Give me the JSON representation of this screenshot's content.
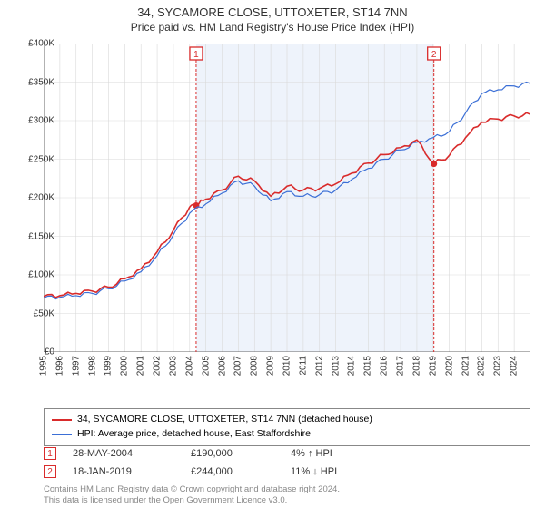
{
  "title": {
    "line1": "34, SYCAMORE CLOSE, UTTOXETER, ST14 7NN",
    "line2": "Price paid vs. HM Land Registry's House Price Index (HPI)",
    "fontsize1": 13,
    "fontsize2": 12,
    "color": "#333333"
  },
  "chart": {
    "type": "line",
    "background_color": "#ffffff",
    "grid_color": "#d9d9d9",
    "axis_color": "#666666",
    "x_years": [
      1995,
      1996,
      1997,
      1998,
      1999,
      2000,
      2001,
      2002,
      2003,
      2004,
      2005,
      2006,
      2007,
      2008,
      2009,
      2010,
      2011,
      2012,
      2013,
      2014,
      2015,
      2016,
      2017,
      2018,
      2019,
      2020,
      2021,
      2022,
      2023,
      2024
    ],
    "xmin": 1995,
    "xmax": 2025,
    "ylim": [
      0,
      400000
    ],
    "ytick_step": 50000,
    "ytick_labels": [
      "£0",
      "£50K",
      "£100K",
      "£150K",
      "£200K",
      "£250K",
      "£300K",
      "£350K",
      "£400K"
    ],
    "shaded_region": {
      "x_start": 2004.4,
      "x_end": 2019.05,
      "fill": "#eef3fb"
    },
    "series": [
      {
        "name": "price_paid",
        "label": "34, SYCAMORE CLOSE, UTTOXETER, ST14 7NN (detached house)",
        "color": "#d92b2b",
        "line_width": 1.6,
        "data": [
          [
            1995,
            72000
          ],
          [
            1996,
            73000
          ],
          [
            1997,
            76000
          ],
          [
            1998,
            79000
          ],
          [
            1999,
            84000
          ],
          [
            2000,
            95000
          ],
          [
            2001,
            108000
          ],
          [
            2002,
            130000
          ],
          [
            2003,
            158000
          ],
          [
            2004,
            188000
          ],
          [
            2004.4,
            190000
          ],
          [
            2005,
            198000
          ],
          [
            2006,
            210000
          ],
          [
            2007,
            228000
          ],
          [
            2008,
            222000
          ],
          [
            2009,
            202000
          ],
          [
            2010,
            215000
          ],
          [
            2011,
            210000
          ],
          [
            2012,
            212000
          ],
          [
            2013,
            218000
          ],
          [
            2014,
            232000
          ],
          [
            2015,
            245000
          ],
          [
            2016,
            256000
          ],
          [
            2017,
            265000
          ],
          [
            2018,
            275000
          ],
          [
            2019.05,
            244000
          ],
          [
            2020,
            255000
          ],
          [
            2021,
            278000
          ],
          [
            2022,
            298000
          ],
          [
            2023,
            302000
          ],
          [
            2024,
            306000
          ],
          [
            2025,
            308000
          ]
        ]
      },
      {
        "name": "hpi",
        "label": "HPI: Average price, detached house, East Staffordshire",
        "color": "#3b6fd6",
        "line_width": 1.2,
        "data": [
          [
            1995,
            70000
          ],
          [
            1996,
            71000
          ],
          [
            1997,
            73000
          ],
          [
            1998,
            76000
          ],
          [
            1999,
            82000
          ],
          [
            2000,
            92000
          ],
          [
            2001,
            104000
          ],
          [
            2002,
            125000
          ],
          [
            2003,
            152000
          ],
          [
            2004,
            180000
          ],
          [
            2005,
            192000
          ],
          [
            2006,
            206000
          ],
          [
            2007,
            222000
          ],
          [
            2008,
            215000
          ],
          [
            2009,
            196000
          ],
          [
            2010,
            208000
          ],
          [
            2011,
            202000
          ],
          [
            2012,
            204000
          ],
          [
            2013,
            210000
          ],
          [
            2014,
            224000
          ],
          [
            2015,
            238000
          ],
          [
            2016,
            250000
          ],
          [
            2017,
            262000
          ],
          [
            2018,
            272000
          ],
          [
            2019,
            278000
          ],
          [
            2020,
            286000
          ],
          [
            2021,
            310000
          ],
          [
            2022,
            335000
          ],
          [
            2023,
            340000
          ],
          [
            2024,
            345000
          ],
          [
            2025,
            348000
          ]
        ]
      }
    ],
    "sale_markers": [
      {
        "n": "1",
        "x": 2004.4,
        "y": 190000,
        "color": "#d92b2b",
        "line_dash": "3,2"
      },
      {
        "n": "2",
        "x": 2019.05,
        "y": 244000,
        "color": "#d92b2b",
        "line_dash": "3,2"
      }
    ],
    "label_fontsize": 10
  },
  "legend": {
    "border_color": "#888888",
    "fontsize": 10.5,
    "items": [
      {
        "color": "#d92b2b",
        "label": "34, SYCAMORE CLOSE, UTTOXETER, ST14 7NN (detached house)"
      },
      {
        "color": "#3b6fd6",
        "label": "HPI: Average price, detached house, East Staffordshire"
      }
    ]
  },
  "sales": [
    {
      "n": "1",
      "color": "#d92b2b",
      "date": "28-MAY-2004",
      "price": "£190,000",
      "delta": "4% ↑ HPI"
    },
    {
      "n": "2",
      "color": "#d92b2b",
      "date": "18-JAN-2019",
      "price": "£244,000",
      "delta": "11% ↓ HPI"
    }
  ],
  "footer": {
    "line1": "Contains HM Land Registry data © Crown copyright and database right 2024.",
    "line2": "This data is licensed under the Open Government Licence v3.0.",
    "color": "#888888",
    "fontsize": 9.5
  }
}
